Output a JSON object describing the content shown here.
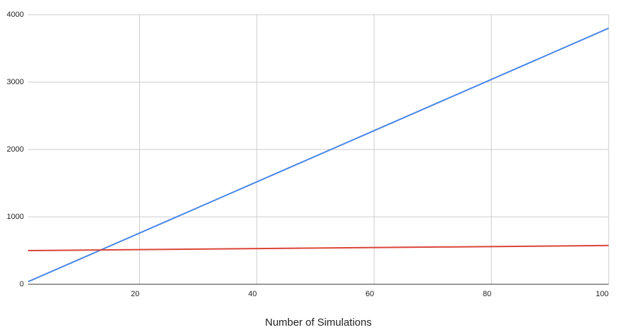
{
  "chart_data": {
    "type": "line",
    "x_label": "Number of Simulations",
    "x": [
      1,
      100
    ],
    "series": [
      {
        "color": "#4a86e8",
        "values": [
          38,
          3800
        ]
      },
      {
        "color": "#db4437",
        "values": [
          500,
          575
        ]
      }
    ],
    "xlim": [
      1,
      100
    ],
    "xticks": [
      20,
      40,
      60,
      80,
      100
    ],
    "ylim": [
      0,
      4000
    ],
    "yticks": [
      0,
      1000,
      2000,
      3000,
      4000
    ],
    "grid": true
  }
}
